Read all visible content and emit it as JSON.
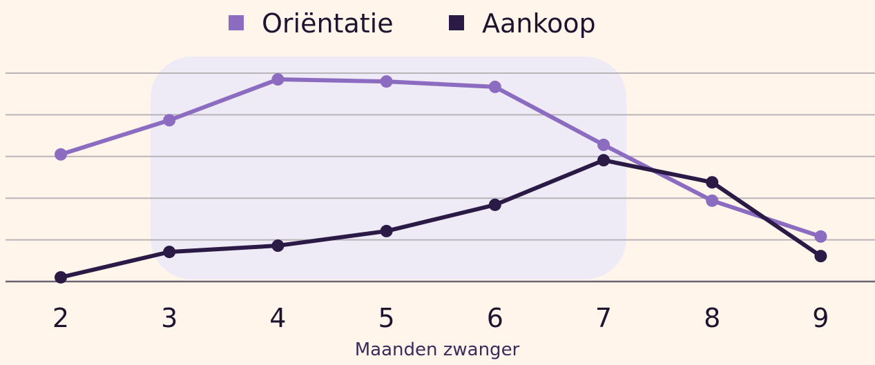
{
  "chart_data": {
    "type": "line",
    "x_label": "Maanden zwanger",
    "categories": [
      "2",
      "3",
      "4",
      "5",
      "6",
      "7",
      "8",
      "9"
    ],
    "series": [
      {
        "name": "Oriëntatie",
        "color": "#8c6cc0",
        "values": [
          3.05,
          3.87,
          4.85,
          4.8,
          4.67,
          3.28,
          1.94,
          1.08
        ]
      },
      {
        "name": "Aankoop",
        "color": "#2a1a45",
        "values": [
          0.1,
          0.71,
          0.86,
          1.21,
          1.84,
          2.91,
          2.38,
          0.61
        ]
      }
    ],
    "ylim": [
      0,
      5
    ],
    "yticks": [
      0,
      1,
      2,
      3,
      4,
      5
    ],
    "grid": true
  }
}
